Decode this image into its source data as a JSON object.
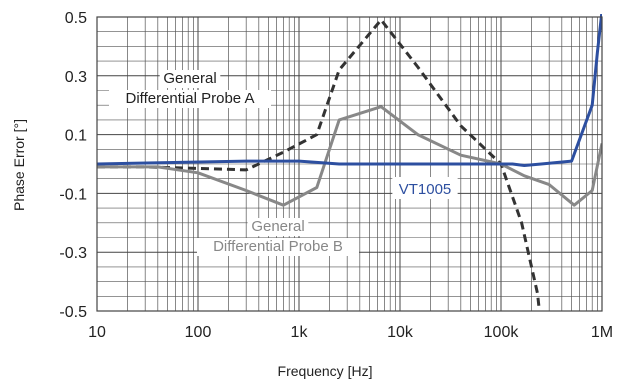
{
  "chart_data": {
    "type": "line",
    "xlabel": "Frequency [Hz]",
    "ylabel": "Phase Error [°]",
    "xscale": "log",
    "xlim": [
      10,
      1000000
    ],
    "ylim": [
      -0.5,
      0.5
    ],
    "xticks": [
      {
        "value": 10,
        "label": "10"
      },
      {
        "value": 100,
        "label": "100"
      },
      {
        "value": 1000,
        "label": "1k"
      },
      {
        "value": 10000,
        "label": "10k"
      },
      {
        "value": 100000,
        "label": "100k"
      },
      {
        "value": 1000000,
        "label": "1M"
      }
    ],
    "yticks": [
      {
        "value": 0.5,
        "label": "0.5"
      },
      {
        "value": 0.3,
        "label": "0.3"
      },
      {
        "value": 0.1,
        "label": "0.1"
      },
      {
        "value": -0.1,
        "label": "-0.1"
      },
      {
        "value": -0.3,
        "label": "-0.3"
      },
      {
        "value": -0.5,
        "label": "-0.5"
      }
    ],
    "grid": true,
    "series": [
      {
        "name": "General Differential Probe A",
        "color": "#333333",
        "style": "dashed",
        "x": [
          10,
          30,
          100,
          300,
          700,
          1500,
          2500,
          6500,
          15000,
          40000,
          100000,
          160000,
          230000,
          240000
        ],
        "y": [
          -0.01,
          -0.01,
          -0.015,
          -0.02,
          0.04,
          0.1,
          0.32,
          0.49,
          0.33,
          0.13,
          0.0,
          -0.2,
          -0.44,
          -0.5
        ]
      },
      {
        "name": "General Differential Probe B",
        "color": "#888888",
        "style": "solid",
        "x": [
          10,
          40,
          100,
          300,
          700,
          1500,
          2500,
          6500,
          15000,
          40000,
          100000,
          170000,
          300000,
          530000,
          800000,
          1000000
        ],
        "y": [
          -0.01,
          -0.01,
          -0.03,
          -0.09,
          -0.14,
          -0.08,
          0.15,
          0.195,
          0.1,
          0.03,
          0.0,
          -0.04,
          -0.07,
          -0.14,
          -0.09,
          0.07
        ]
      },
      {
        "name": "VT1005",
        "color": "#2d4fa0",
        "style": "solid",
        "x": [
          10,
          300,
          1000,
          2500,
          10000,
          100000,
          130000,
          170000,
          250000,
          500000,
          800000,
          900000,
          1000000
        ],
        "y": [
          0.0,
          0.01,
          0.01,
          0.0,
          0.0,
          0.0,
          0.0,
          -0.005,
          0.0,
          0.01,
          0.2,
          0.38,
          0.52
        ]
      }
    ],
    "annotations": [
      {
        "lines": [
          "General",
          "Differential Probe A"
        ],
        "color": "#222222"
      },
      {
        "lines": [
          "General",
          "Differential Probe B"
        ],
        "color": "#888888"
      },
      {
        "lines": [
          "VT1005"
        ],
        "color": "#2d4fa0"
      }
    ]
  }
}
